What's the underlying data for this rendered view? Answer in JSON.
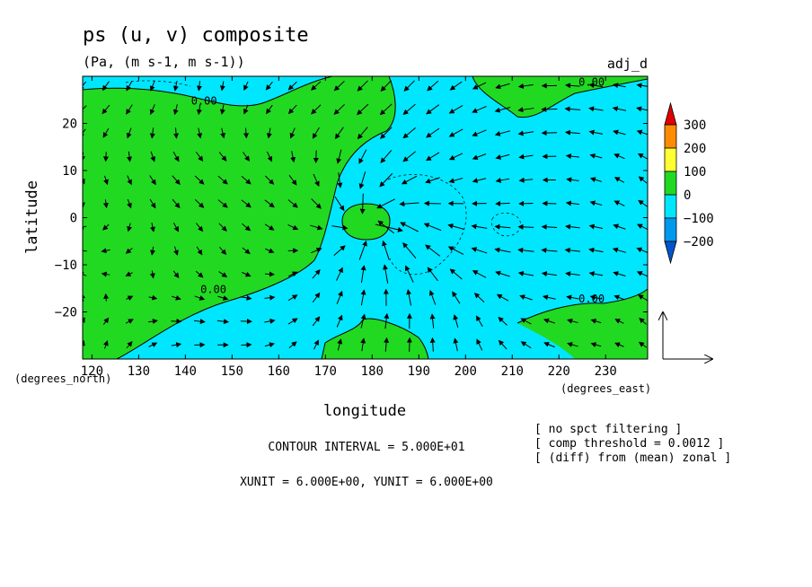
{
  "chart_data": {
    "type": "contour-vector-map",
    "title": "ps (u, v) composite",
    "units": "(Pa, (m s-1, m s-1))",
    "run_label": "adj_d",
    "xlabel": "longitude",
    "ylabel": "latitude",
    "x_unit_label": "(degrees_east)",
    "y_unit_label": "(degrees_north)",
    "xlim": [
      118,
      239
    ],
    "ylim": [
      -30,
      30
    ],
    "x_ticks": [
      120,
      130,
      140,
      150,
      160,
      170,
      180,
      190,
      200,
      210,
      220,
      230
    ],
    "y_ticks": [
      20,
      10,
      0,
      -10,
      -20
    ],
    "y_tick_labels": [
      "20",
      "10",
      "0",
      "−10",
      "−20"
    ],
    "contour_labels": [
      {
        "text": "0.00",
        "lon": 144,
        "lat": 24
      },
      {
        "text": "0.00",
        "lon": 146,
        "lat": -16
      },
      {
        "text": "0.00",
        "lon": 227,
        "lat": 28
      },
      {
        "text": "0.00",
        "lon": 227,
        "lat": -18
      }
    ],
    "colorbar": {
      "levels": [
        "300",
        "200",
        "100",
        "0",
        "−100",
        "−200"
      ],
      "colors": [
        "#e00000",
        "#ff8c00",
        "#ffff33",
        "#22d922",
        "#00e6ff",
        "#0099ee",
        "#0055cc"
      ]
    },
    "fill_colors": {
      "positive": "#22d922",
      "negative": "#00e6ff"
    },
    "vector_field": {
      "grid_spacing_deg": 5,
      "center_lon": 180,
      "center_lat": -1,
      "pattern": "convergent cyclone with westward background flow"
    },
    "notes": {
      "contour_interval": "CONTOUR INTERVAL = 5.000E+01",
      "units_line": "XUNIT = 6.000E+00, YUNIT = 6.000E+00",
      "filter_1": "[ no spct filtering ]",
      "filter_2": "[ comp threshold = 0.0012 ]",
      "filter_3": "[ (diff) from (mean) zonal ]"
    }
  }
}
